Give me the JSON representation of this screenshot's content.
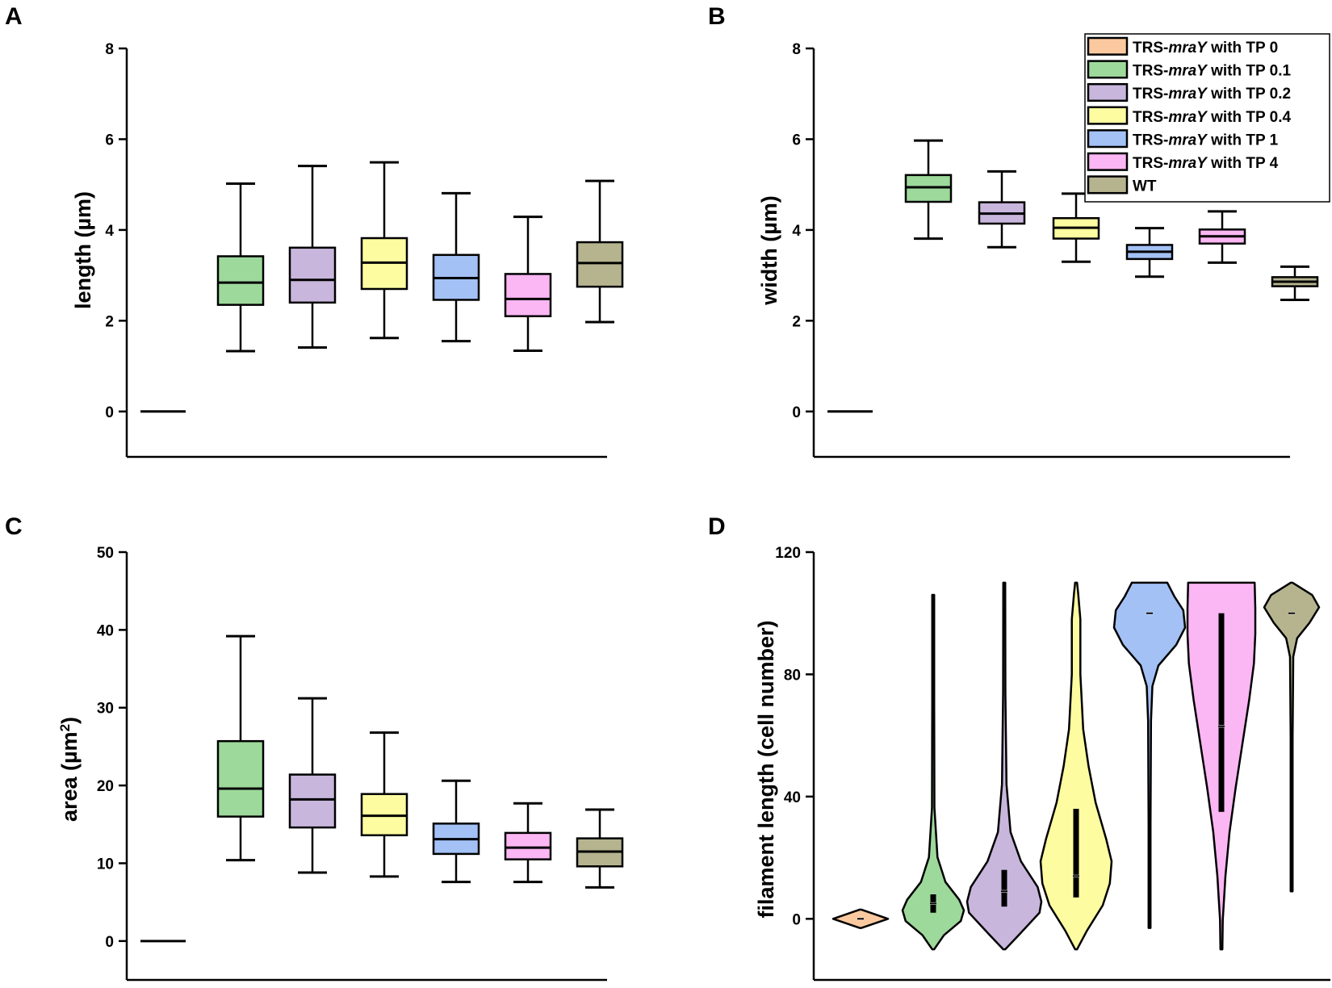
{
  "colors": {
    "TP0": "#fbc9a0",
    "TP0_1": "#9ed99c",
    "TP0_2": "#c8b6dc",
    "TP0_4": "#fdfca0",
    "TP1": "#a3c1f5",
    "TP4": "#fbb6f4",
    "WT": "#b5b48f"
  },
  "legend": {
    "items": [
      {
        "key": "TP0",
        "prefix": "TRS-",
        "gene": "mraY",
        "suffix": " with TP 0"
      },
      {
        "key": "TP0_1",
        "prefix": "TRS-",
        "gene": "mraY",
        "suffix": " with TP 0.1"
      },
      {
        "key": "TP0_2",
        "prefix": "TRS-",
        "gene": "mraY",
        "suffix": " with TP 0.2"
      },
      {
        "key": "TP0_4",
        "prefix": "TRS-",
        "gene": "mraY",
        "suffix": " with TP 0.4"
      },
      {
        "key": "TP1",
        "prefix": "TRS-",
        "gene": "mraY",
        "suffix": " with TP 1"
      },
      {
        "key": "TP4",
        "prefix": "TRS-",
        "gene": "mraY",
        "suffix": " with TP 4"
      },
      {
        "key": "WT",
        "prefix": "",
        "gene": "",
        "suffix": "WT"
      }
    ]
  },
  "chart_data": [
    {
      "panel": "A",
      "type": "box",
      "ylabel": "length (µm)",
      "ylim": [
        -1,
        8
      ],
      "yticks": [
        0,
        2,
        4,
        6,
        8
      ],
      "categories": [
        "TP0",
        "TP0_1",
        "TP0_2",
        "TP0_4",
        "TP1",
        "TP4",
        "WT"
      ],
      "boxes": [
        {
          "key": "TP0",
          "min": 0,
          "q1": 0,
          "median": 0,
          "q3": 0,
          "max": 0
        },
        {
          "key": "TP0_1",
          "min": 1.33,
          "q1": 2.35,
          "median": 2.84,
          "q3": 3.42,
          "max": 5.02
        },
        {
          "key": "TP0_2",
          "min": 1.41,
          "q1": 2.4,
          "median": 2.9,
          "q3": 3.61,
          "max": 5.41
        },
        {
          "key": "TP0_4",
          "min": 1.62,
          "q1": 2.7,
          "median": 3.28,
          "q3": 3.82,
          "max": 5.49
        },
        {
          "key": "TP1",
          "min": 1.55,
          "q1": 2.46,
          "median": 2.94,
          "q3": 3.45,
          "max": 4.81
        },
        {
          "key": "TP4",
          "min": 1.34,
          "q1": 2.1,
          "median": 2.48,
          "q3": 3.03,
          "max": 4.29
        },
        {
          "key": "WT",
          "min": 1.97,
          "q1": 2.75,
          "median": 3.27,
          "q3": 3.73,
          "max": 5.08
        }
      ]
    },
    {
      "panel": "B",
      "type": "box",
      "ylabel": "width (µm)",
      "ylim": [
        -1,
        8
      ],
      "yticks": [
        0,
        2,
        4,
        6,
        8
      ],
      "categories": [
        "TP0",
        "TP0_1",
        "TP0_2",
        "TP0_4",
        "TP1",
        "TP4",
        "WT"
      ],
      "boxes": [
        {
          "key": "TP0",
          "min": 0,
          "q1": 0,
          "median": 0,
          "q3": 0,
          "max": 0
        },
        {
          "key": "TP0_1",
          "min": 3.81,
          "q1": 4.62,
          "median": 4.94,
          "q3": 5.21,
          "max": 5.97
        },
        {
          "key": "TP0_2",
          "min": 3.62,
          "q1": 4.14,
          "median": 4.36,
          "q3": 4.61,
          "max": 5.29
        },
        {
          "key": "TP0_4",
          "min": 3.3,
          "q1": 3.81,
          "median": 4.05,
          "q3": 4.26,
          "max": 4.8
        },
        {
          "key": "TP1",
          "min": 2.97,
          "q1": 3.36,
          "median": 3.52,
          "q3": 3.67,
          "max": 4.04
        },
        {
          "key": "TP4",
          "min": 3.28,
          "q1": 3.7,
          "median": 3.86,
          "q3": 4.01,
          "max": 4.41
        },
        {
          "key": "WT",
          "min": 2.46,
          "q1": 2.76,
          "median": 2.86,
          "q3": 2.96,
          "max": 3.19
        }
      ]
    },
    {
      "panel": "C",
      "type": "box",
      "ylabel": "area (µm²)",
      "ylim": [
        -5,
        50
      ],
      "yticks": [
        0,
        10,
        20,
        30,
        40,
        50
      ],
      "categories": [
        "TP0",
        "TP0_1",
        "TP0_2",
        "TP0_4",
        "TP1",
        "TP4",
        "WT"
      ],
      "boxes": [
        {
          "key": "TP0",
          "min": 0,
          "q1": 0,
          "median": 0,
          "q3": 0,
          "max": 0
        },
        {
          "key": "TP0_1",
          "min": 10.4,
          "q1": 16.0,
          "median": 19.6,
          "q3": 25.7,
          "max": 39.2
        },
        {
          "key": "TP0_2",
          "min": 8.8,
          "q1": 14.6,
          "median": 18.2,
          "q3": 21.4,
          "max": 31.2
        },
        {
          "key": "TP0_4",
          "min": 8.3,
          "q1": 13.6,
          "median": 16.1,
          "q3": 18.9,
          "max": 26.8
        },
        {
          "key": "TP1",
          "min": 7.6,
          "q1": 11.2,
          "median": 13.1,
          "q3": 15.1,
          "max": 20.6
        },
        {
          "key": "TP4",
          "min": 7.6,
          "q1": 10.5,
          "median": 12.0,
          "q3": 13.9,
          "max": 17.7
        },
        {
          "key": "WT",
          "min": 6.9,
          "q1": 9.6,
          "median": 11.5,
          "q3": 13.2,
          "max": 16.9
        }
      ]
    },
    {
      "panel": "D",
      "type": "violin",
      "ylabel": "filament length (cell number)",
      "ylim": [
        -20,
        120
      ],
      "yticks": [
        0,
        40,
        80,
        120
      ],
      "categories": [
        "TP0",
        "TP0_1",
        "TP0_2",
        "TP0_4",
        "TP1",
        "TP4",
        "WT"
      ],
      "violins": [
        {
          "key": "TP0",
          "min": -3,
          "max": 3,
          "q1": 0,
          "median": 0,
          "q3": 0
        },
        {
          "key": "TP0_1",
          "min": -10,
          "max": 106,
          "q1": 2,
          "median": 5,
          "q3": 8
        },
        {
          "key": "TP0_2",
          "min": -10,
          "max": 110,
          "q1": 4,
          "median": 9,
          "q3": 16
        },
        {
          "key": "TP0_4",
          "min": -10,
          "max": 110,
          "q1": 7,
          "median": 14,
          "q3": 36
        },
        {
          "key": "TP1",
          "min": -3,
          "max": 110,
          "q1": 100,
          "median": 100,
          "q3": 100
        },
        {
          "key": "TP4",
          "min": -10,
          "max": 110,
          "q1": 35,
          "median": 63,
          "q3": 100
        },
        {
          "key": "WT",
          "min": 9,
          "max": 110,
          "q1": 100,
          "median": 100,
          "q3": 100
        }
      ]
    }
  ]
}
